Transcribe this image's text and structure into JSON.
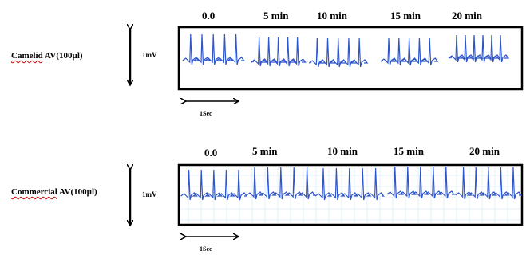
{
  "panels": [
    {
      "label_word": "Camelid",
      "label_rest": " AV(100µl)",
      "amplitude_label": "1mV",
      "time_label": "1Sec",
      "time_points": [
        "0.0",
        "5 min",
        "10 min",
        "15 min",
        "20 min"
      ],
      "grid": false,
      "ecg_color": "#2f56c9"
    },
    {
      "label_word": "Commercial",
      "label_rest": " AV(100µl)",
      "amplitude_label": "1mV",
      "time_label": "1Sec",
      "time_points": [
        "0.0",
        "5 min",
        "10 min",
        "15 min",
        "20 min"
      ],
      "grid": true,
      "ecg_color": "#2f56c9"
    }
  ]
}
